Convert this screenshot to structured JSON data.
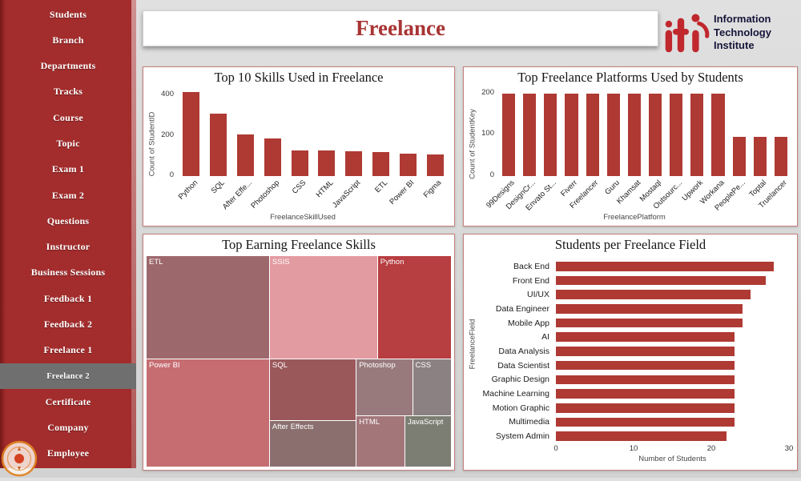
{
  "header": {
    "title": "Freelance"
  },
  "logo": {
    "mark": "iti",
    "lines": [
      "Information",
      "Technology",
      "Institute"
    ]
  },
  "colors": {
    "bar": "#ae3a33",
    "sidebar": "#a32c2c",
    "accent": "#a93434",
    "selected_item": "#6f6f6f"
  },
  "sidebar": {
    "items": [
      {
        "label": "Students",
        "selected": false
      },
      {
        "label": "Branch",
        "selected": false
      },
      {
        "label": "Departments",
        "selected": false
      },
      {
        "label": "Tracks",
        "selected": false
      },
      {
        "label": "Course",
        "selected": false
      },
      {
        "label": "Topic",
        "selected": false
      },
      {
        "label": "Exam 1",
        "selected": false
      },
      {
        "label": "Exam 2",
        "selected": false
      },
      {
        "label": "Questions",
        "selected": false
      },
      {
        "label": "Instructor",
        "selected": false
      },
      {
        "label": "Business Sessions",
        "selected": false
      },
      {
        "label": "Feedback 1",
        "selected": false
      },
      {
        "label": "Feedback 2",
        "selected": false
      },
      {
        "label": "Freelance 1",
        "selected": false
      },
      {
        "label": "Freelance 2",
        "selected": true
      },
      {
        "label": "Certificate",
        "selected": false
      },
      {
        "label": "Company",
        "selected": false
      },
      {
        "label": "Employee",
        "selected": false
      }
    ]
  },
  "chart_data": [
    {
      "type": "bar",
      "title": "Top 10 Skills Used in Freelance",
      "xlabel": "FreelanceSkillUsed",
      "ylabel": "Count of StudentID",
      "categories": [
        "Python",
        "SQL",
        "After Effe...",
        "Photoshop",
        "CSS",
        "HTML",
        "JavaScript",
        "ETL",
        "Power BI",
        "Figma"
      ],
      "values": [
        415,
        310,
        205,
        185,
        128,
        126,
        122,
        120,
        113,
        108
      ],
      "yticks": [
        0,
        200,
        400
      ],
      "ymax": 440,
      "legend": "off",
      "grid": "off"
    },
    {
      "type": "bar",
      "title": "Top Freelance Platforms Used by Students",
      "xlabel": "FreelancePlatform",
      "ylabel": "Count of StudentKey",
      "categories": [
        "99Designs",
        "DesignCr...",
        "Envato St...",
        "Fiverr",
        "Freelancer",
        "Guru",
        "Khamsat",
        "Mostaql",
        "Outsourc...",
        "Upwork",
        "Workana",
        "PeoplePe...",
        "Toptal",
        "Truelancer"
      ],
      "values": [
        200,
        200,
        200,
        200,
        200,
        200,
        200,
        200,
        200,
        200,
        200,
        95,
        95,
        95
      ],
      "yticks": [
        0,
        100,
        200
      ],
      "ymax": 215,
      "legend": "off",
      "grid": "off"
    },
    {
      "type": "treemap",
      "title": "Top Earning Freelance Skills",
      "items": [
        {
          "label": "ETL",
          "x": 0,
          "y": 0,
          "w": 40.5,
          "h": 49,
          "color": "#9d686c"
        },
        {
          "label": "SSIS",
          "x": 40.5,
          "y": 0,
          "w": 35.5,
          "h": 49,
          "color": "#e29ba1"
        },
        {
          "label": "Python",
          "x": 76,
          "y": 0,
          "w": 24,
          "h": 49,
          "color": "#b73e41"
        },
        {
          "label": "Power BI",
          "x": 0,
          "y": 49,
          "w": 40.5,
          "h": 51,
          "color": "#c66d72"
        },
        {
          "label": "SQL",
          "x": 40.5,
          "y": 49,
          "w": 28.5,
          "h": 29.5,
          "color": "#9b585b"
        },
        {
          "label": "After Effects",
          "x": 40.5,
          "y": 78.5,
          "w": 28.5,
          "h": 21.5,
          "color": "#8a6f6e"
        },
        {
          "label": "Photoshop",
          "x": 69,
          "y": 49,
          "w": 18.5,
          "h": 27,
          "color": "#997a7c"
        },
        {
          "label": "CSS",
          "x": 87.5,
          "y": 49,
          "w": 12.5,
          "h": 27,
          "color": "#8b8183"
        },
        {
          "label": "HTML",
          "x": 69,
          "y": 76,
          "w": 16,
          "h": 24,
          "color": "#a3767a"
        },
        {
          "label": "JavaScript",
          "x": 85,
          "y": 76,
          "w": 15,
          "h": 24,
          "color": "#7d7e73"
        }
      ]
    },
    {
      "type": "bar-horizontal",
      "title": "Students per Freelance Field",
      "xlabel": "Number of Students",
      "ylabel": "FreelanceField",
      "categories": [
        "Back End",
        "Front End",
        "UI/UX",
        "Data Engineer",
        "Mobile App",
        "AI",
        "Data Analysis",
        "Data Scientist",
        "Graphic Design",
        "Machine Learning",
        "Motion Graphic",
        "Multimedia",
        "System Admin"
      ],
      "values": [
        28,
        27,
        25,
        24,
        24,
        23,
        23,
        23,
        23,
        23,
        23,
        23,
        22
      ],
      "xticks": [
        0,
        10,
        20,
        30
      ],
      "xmax": 30,
      "legend": "off",
      "grid": "off"
    }
  ]
}
